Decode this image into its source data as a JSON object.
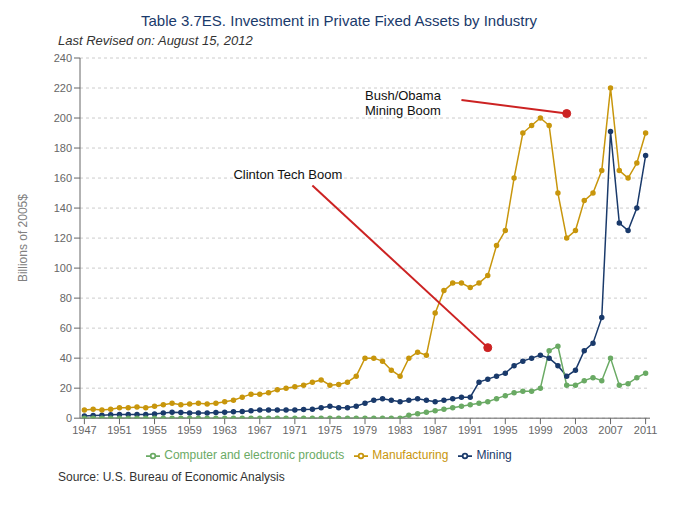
{
  "chart_data": {
    "type": "line",
    "title": "Table 3.7ES. Investment in Private Fixed Assets by Industry",
    "subtitle": "Last Revised on: August 15, 2012",
    "source": "Source: U.S. Bureau of Economic Analysis",
    "ylabel": "Billions of 2005$",
    "x": [
      1947,
      1948,
      1949,
      1950,
      1951,
      1952,
      1953,
      1954,
      1955,
      1956,
      1957,
      1958,
      1959,
      1960,
      1961,
      1962,
      1963,
      1964,
      1965,
      1966,
      1967,
      1968,
      1969,
      1970,
      1971,
      1972,
      1973,
      1974,
      1975,
      1976,
      1977,
      1978,
      1979,
      1980,
      1981,
      1982,
      1983,
      1984,
      1985,
      1986,
      1987,
      1988,
      1989,
      1990,
      1991,
      1992,
      1993,
      1994,
      1995,
      1996,
      1997,
      1998,
      1999,
      2000,
      2001,
      2002,
      2003,
      2004,
      2005,
      2006,
      2007,
      2008,
      2009,
      2010,
      2011
    ],
    "series": [
      {
        "name": "Mining",
        "color": "#1a3a6b",
        "marker": "circle",
        "values": [
          1.5,
          1.8,
          2.0,
          2.2,
          2.5,
          2.5,
          2.5,
          2.5,
          2.8,
          3.5,
          4.0,
          3.8,
          3.5,
          3.5,
          3.5,
          3.8,
          4.0,
          4.2,
          4.5,
          5.0,
          5.5,
          5.5,
          5.5,
          5.5,
          5.5,
          5.8,
          6.0,
          7.0,
          8.0,
          7.0,
          7.0,
          8.0,
          10.0,
          12.0,
          13.0,
          12.0,
          11.0,
          12.0,
          13.0,
          12.0,
          11.0,
          12.0,
          13.0,
          14.0,
          14.0,
          24.0,
          26.0,
          28.0,
          30.0,
          35.0,
          38.0,
          40.0,
          42.0,
          40.0,
          35.0,
          28.0,
          32.0,
          45.0,
          50.0,
          67.0,
          191.0,
          130.0,
          125.0,
          140.0,
          175.0
        ]
      },
      {
        "name": "Manufacturing",
        "color": "#c8960c",
        "marker": "circle",
        "values": [
          5.5,
          6.0,
          5.5,
          6.0,
          7.0,
          7.0,
          7.5,
          7.0,
          8.0,
          9.0,
          10.0,
          9.0,
          9.5,
          10.0,
          9.5,
          10.0,
          11.0,
          12.0,
          14.0,
          16.0,
          16.0,
          17.0,
          19.0,
          20.0,
          21.0,
          22.0,
          24.0,
          25.5,
          22.0,
          22.5,
          24.0,
          28.0,
          40.0,
          40.0,
          38.0,
          32.0,
          28.0,
          40.0,
          44.0,
          42.0,
          70.0,
          85.0,
          90.0,
          90.0,
          87.0,
          90.0,
          95.0,
          115.0,
          125.0,
          160.0,
          190.0,
          195.0,
          200.0,
          195.0,
          150.0,
          120.0,
          125.0,
          145.0,
          150.0,
          165.0,
          220.0,
          165.0,
          160.0,
          170.0,
          190.0
        ]
      },
      {
        "name": "Computer and electronic products",
        "color": "#6aaa64",
        "marker": "circle",
        "values": [
          0,
          0,
          0,
          0,
          0,
          0,
          0,
          0,
          0,
          0,
          0,
          0,
          0,
          0,
          0,
          0,
          0,
          0,
          0,
          0,
          0,
          0,
          0,
          0,
          0,
          0,
          0,
          0,
          0,
          0,
          0,
          0,
          0,
          0,
          0,
          0,
          0,
          2.0,
          3.0,
          4.0,
          5.0,
          6.0,
          7.0,
          8.0,
          9.0,
          10.0,
          11.0,
          13.0,
          15.0,
          17.0,
          18.0,
          18.0,
          20.0,
          45.0,
          48.0,
          22.0,
          22.0,
          25.0,
          27.0,
          25.0,
          40.0,
          22.0,
          23.0,
          27.0,
          30.0
        ]
      }
    ],
    "xlim": [
      1946.5,
      2011.5
    ],
    "xticks": [
      1947,
      1951,
      1955,
      1959,
      1963,
      1967,
      1971,
      1975,
      1979,
      1983,
      1987,
      1991,
      1995,
      1999,
      2003,
      2007,
      2011
    ],
    "ylim": [
      0,
      240
    ],
    "yticks": [
      0,
      20,
      40,
      60,
      80,
      100,
      120,
      140,
      160,
      180,
      200,
      220,
      240
    ],
    "grid": "y",
    "legend": "bottom",
    "annotations": [
      {
        "text": "Bush/Obama\nMining Boom",
        "color": "#cc2222"
      },
      {
        "text": "Clinton Tech Boom",
        "color": "#cc2222"
      }
    ]
  }
}
